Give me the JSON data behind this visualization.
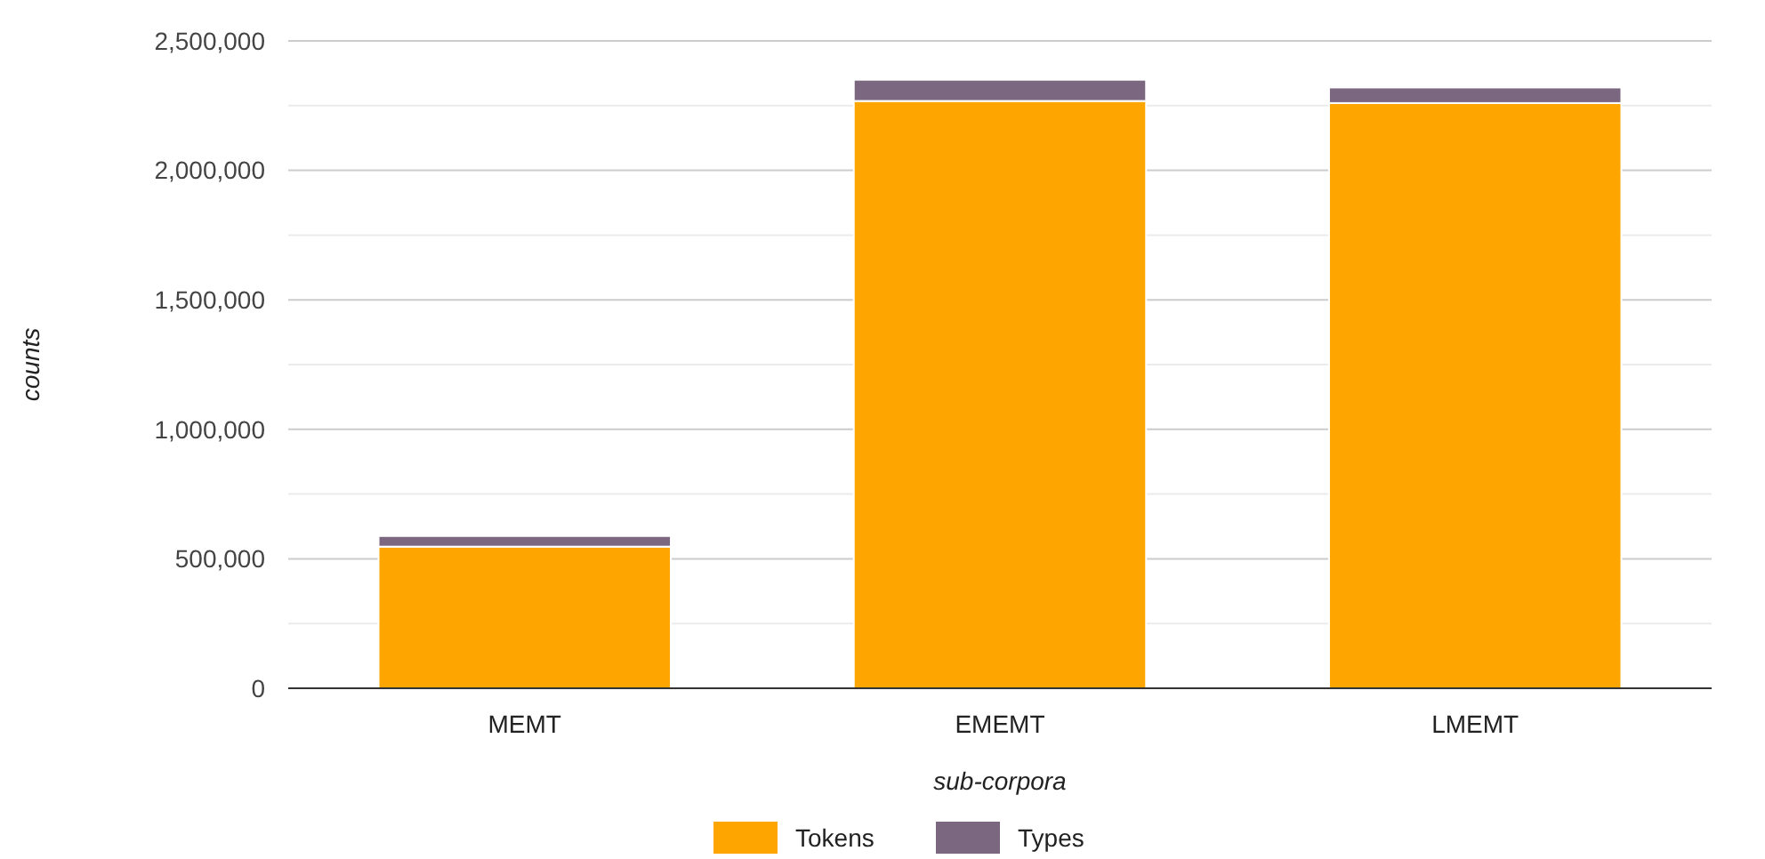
{
  "chart_data": {
    "type": "bar",
    "stacked": true,
    "xlabel": "sub-corpora",
    "ylabel": "counts",
    "categories": [
      "MEMT",
      "EMEMT",
      "LMEMT"
    ],
    "series": [
      {
        "name": "Tokens",
        "color": "#ffa500",
        "values": [
          547000,
          2268000,
          2260000
        ]
      },
      {
        "name": "Types",
        "color": "#7b6880",
        "values": [
          41000,
          82000,
          60000
        ]
      }
    ],
    "ylim": [
      0,
      2500000
    ],
    "yticks": [
      0,
      {
        "value": 250000,
        "label": null
      },
      "500,000",
      {
        "value": 750000,
        "label": null
      },
      {
        "value": 1000000,
        "label": "1,000,000"
      },
      {
        "value": 1250000,
        "label": null
      },
      {
        "value": 1500000,
        "label": "1,500,000"
      },
      {
        "value": 1750000,
        "label": null
      },
      {
        "value": 2000000,
        "label": "2,000,000"
      },
      {
        "value": 2250000,
        "label": null
      },
      {
        "value": 2500000,
        "label": "2,500,000"
      }
    ],
    "grid": "y",
    "legend": "bottom"
  }
}
